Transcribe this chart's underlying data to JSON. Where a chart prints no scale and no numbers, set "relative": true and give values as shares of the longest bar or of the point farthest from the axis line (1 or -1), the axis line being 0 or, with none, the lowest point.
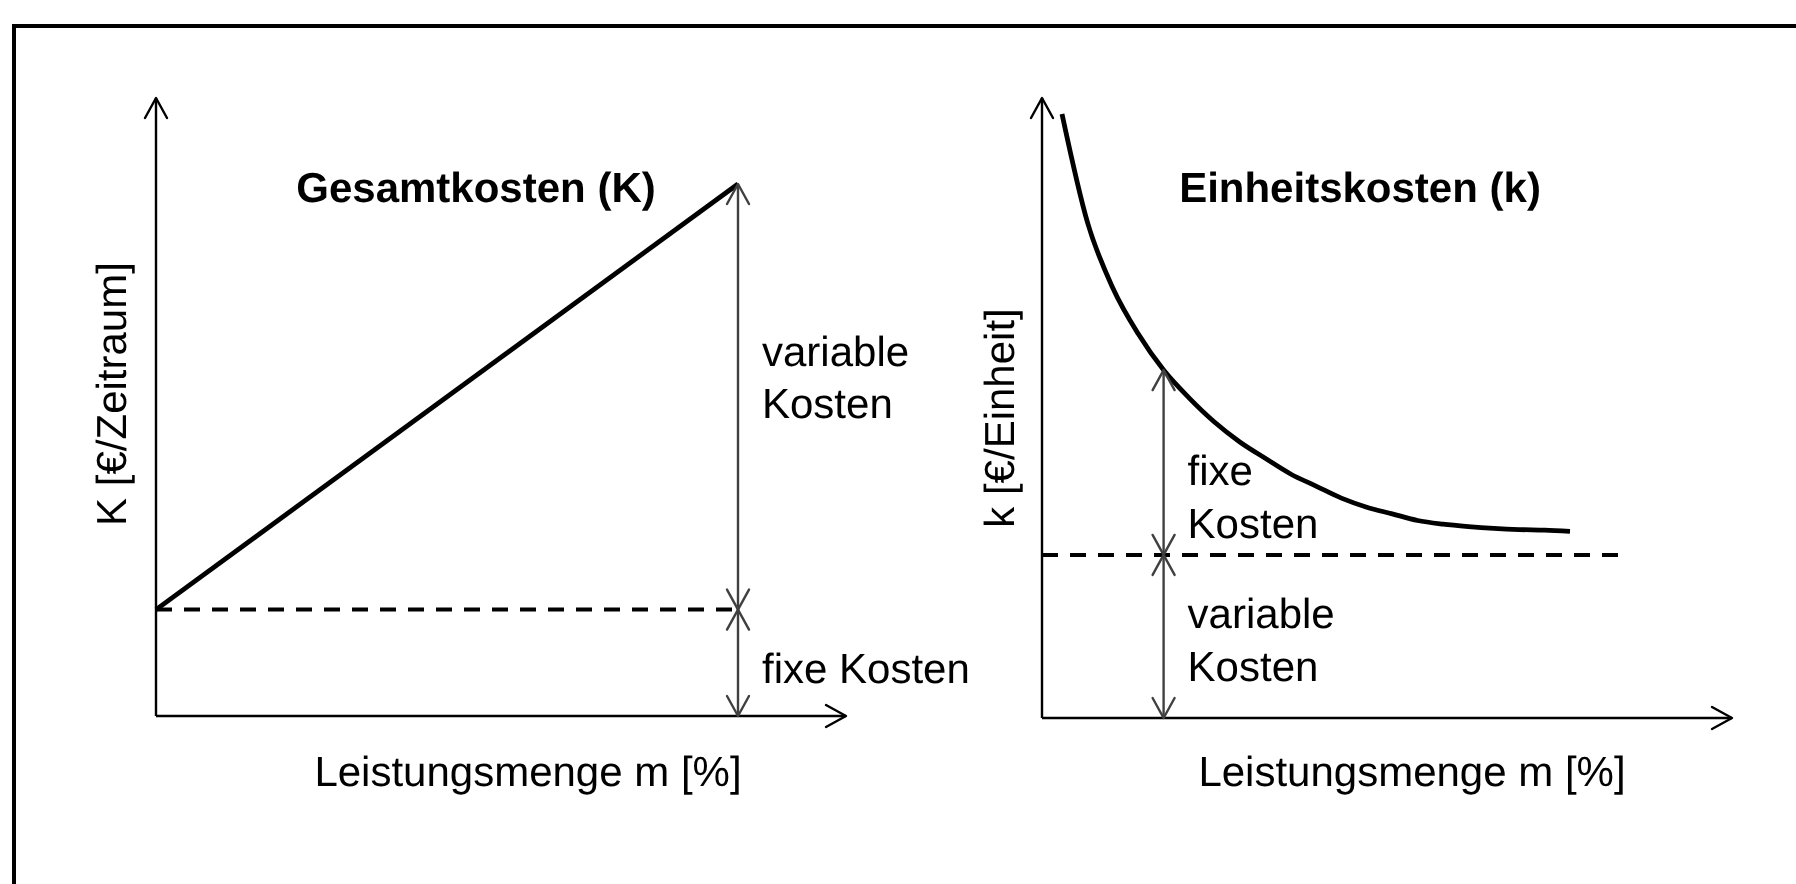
{
  "chart_data": [
    {
      "type": "line",
      "title": "Gesamtkosten (K)",
      "xlabel": "Leistungsmenge m [%]",
      "ylabel": "K [€/Zeitraum]",
      "relative": true,
      "categories": [
        null,
        null
      ],
      "series": [
        {
          "color": "#000000",
          "values": [
            0.2,
            1
          ]
        }
      ],
      "ref_lines": [
        {
          "axis": "y",
          "value": 0.2,
          "color": "#000000",
          "line_style": "dashed"
        }
      ],
      "annotations": [
        "variable Kosten",
        "fixe Kosten"
      ]
    },
    {
      "type": "line",
      "title": "Einheitskosten (k)",
      "xlabel": "Leistungsmenge m [%]",
      "ylabel": "k [€/Einheit]",
      "relative": true,
      "categories": [
        null,
        null,
        null,
        null,
        null,
        null,
        null,
        null,
        null,
        null,
        null,
        null,
        null,
        null,
        null,
        null,
        null,
        null,
        null,
        null,
        null
      ],
      "series": [
        {
          "color": "#000000",
          "values": [
            1,
            0.821,
            0.712,
            0.636,
            0.576,
            0.53,
            0.49,
            0.457,
            0.43,
            0.404,
            0.384,
            0.364,
            0.349,
            0.338,
            0.327,
            0.321,
            0.317,
            0.314,
            0.312,
            0.311,
            0.309
          ]
        }
      ],
      "ref_lines": [
        {
          "axis": "y",
          "value": 0.27,
          "color": "#000000",
          "line_style": "dashed"
        }
      ],
      "annotations": [
        "fixe Kosten",
        "variable Kosten"
      ]
    }
  ]
}
